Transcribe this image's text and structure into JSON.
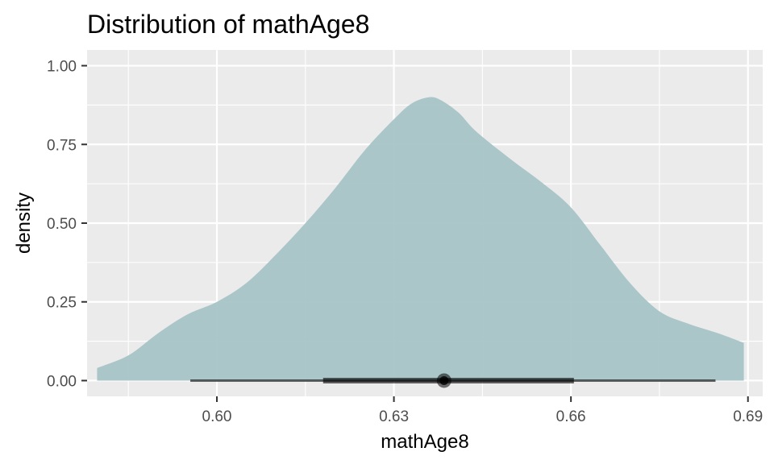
{
  "chart_data": {
    "type": "area",
    "title": "Distribution of mathAge8",
    "xlabel": "mathAge8",
    "ylabel": "density",
    "xlim": [
      0.578,
      0.6925
    ],
    "ylim": [
      -0.05,
      1.05
    ],
    "x_ticks": [
      0.6,
      0.63,
      0.66,
      0.69
    ],
    "x_tick_labels": [
      "0.60",
      "0.63",
      "0.66",
      "0.69"
    ],
    "y_ticks": [
      0.0,
      0.25,
      0.5,
      0.75,
      1.0
    ],
    "y_tick_labels": [
      "0.00",
      "0.25",
      "0.50",
      "0.75",
      "1.00"
    ],
    "grid": true,
    "density": {
      "x": [
        0.5797,
        0.585,
        0.59,
        0.595,
        0.6,
        0.605,
        0.61,
        0.615,
        0.62,
        0.625,
        0.63,
        0.633,
        0.636,
        0.638,
        0.641,
        0.644,
        0.65,
        0.655,
        0.66,
        0.665,
        0.67,
        0.675,
        0.68,
        0.685,
        0.6893
      ],
      "y": [
        0.04,
        0.08,
        0.15,
        0.21,
        0.25,
        0.31,
        0.4,
        0.5,
        0.61,
        0.73,
        0.83,
        0.88,
        0.9,
        0.89,
        0.85,
        0.79,
        0.7,
        0.63,
        0.55,
        0.43,
        0.31,
        0.22,
        0.18,
        0.15,
        0.12
      ]
    },
    "point_interval": {
      "point": 0.6385,
      "inner": [
        0.618,
        0.6605
      ],
      "outer": [
        0.5955,
        0.6845
      ],
      "y": 0
    },
    "colors": {
      "density_fill": "#a6c4c6",
      "panel": "#ebebeb",
      "grid": "#ffffff",
      "interval": "#000000"
    }
  }
}
